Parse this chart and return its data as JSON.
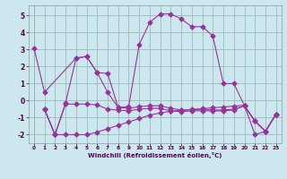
{
  "xlabel": "Windchill (Refroidissement éolien,°C)",
  "bg_color": "#cce8ee",
  "line_color": "#993399",
  "grid_color": "#99bbbb",
  "xlim": [
    -0.5,
    23.5
  ],
  "ylim": [
    -2.5,
    5.6
  ],
  "yticks": [
    -2,
    -1,
    0,
    1,
    2,
    3,
    4,
    5
  ],
  "xticks": [
    0,
    1,
    2,
    3,
    4,
    5,
    6,
    7,
    8,
    9,
    10,
    11,
    12,
    13,
    14,
    15,
    16,
    17,
    18,
    19,
    20,
    21,
    22,
    23
  ],
  "line1_x": [
    0,
    1,
    4,
    5,
    6,
    7,
    8,
    9,
    10,
    11,
    12,
    13,
    14,
    15,
    16,
    17,
    18,
    19,
    20,
    21,
    22,
    23
  ],
  "line1_y": [
    3.1,
    0.5,
    2.5,
    2.6,
    1.65,
    0.5,
    -0.4,
    -0.35,
    3.3,
    4.6,
    5.1,
    5.1,
    4.8,
    4.35,
    4.35,
    3.8,
    1.0,
    1.0,
    -0.3,
    -1.2,
    -1.8,
    -0.8
  ],
  "line2_x": [
    1,
    2,
    3,
    4,
    5,
    6,
    7,
    8,
    9,
    10,
    11,
    12,
    13,
    14,
    15,
    16,
    17,
    18,
    19,
    20,
    21,
    22,
    23
  ],
  "line2_y": [
    -0.5,
    -2.0,
    -0.15,
    2.5,
    2.6,
    1.65,
    1.6,
    -0.4,
    -0.45,
    -0.35,
    -0.3,
    -0.3,
    -0.45,
    -0.55,
    -0.55,
    -0.5,
    -0.55,
    -0.55,
    -0.5,
    -0.3,
    -1.2,
    -1.8,
    -0.8
  ],
  "line3_x": [
    1,
    2,
    3,
    4,
    5,
    6,
    7,
    8,
    9,
    10,
    11,
    12,
    13,
    14,
    15,
    16,
    17,
    18,
    19,
    20,
    21,
    22,
    23
  ],
  "line3_y": [
    -0.5,
    -2.0,
    -0.2,
    -0.2,
    -0.2,
    -0.25,
    -0.5,
    -0.55,
    -0.6,
    -0.5,
    -0.45,
    -0.45,
    -0.6,
    -0.65,
    -0.6,
    -0.6,
    -0.6,
    -0.6,
    -0.55,
    -0.3,
    -1.2,
    -1.8,
    -0.8
  ],
  "line4_x": [
    1,
    2,
    3,
    4,
    5,
    6,
    7,
    8,
    9,
    10,
    11,
    12,
    13,
    14,
    15,
    16,
    17,
    18,
    19,
    20,
    21,
    22,
    23
  ],
  "line4_y": [
    -0.5,
    -2.0,
    -2.0,
    -2.0,
    -2.0,
    -1.85,
    -1.65,
    -1.45,
    -1.25,
    -1.05,
    -0.85,
    -0.72,
    -0.62,
    -0.57,
    -0.52,
    -0.47,
    -0.42,
    -0.37,
    -0.32,
    -0.27,
    -2.0,
    -1.8,
    -0.8
  ]
}
